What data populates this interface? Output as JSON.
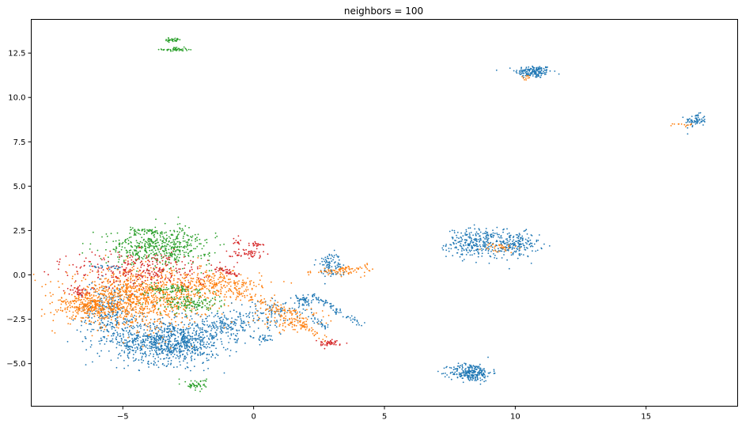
{
  "chart_data": {
    "type": "scatter",
    "title": "neighbors = 100",
    "xlabel": "",
    "ylabel": "",
    "xlim": [
      -8.5,
      18.5
    ],
    "ylim": [
      -7.4,
      14.4
    ],
    "x_ticks": [
      -5,
      0,
      5,
      10,
      15
    ],
    "x_tick_labels": [
      "−5",
      "0",
      "5",
      "10",
      "15"
    ],
    "y_ticks": [
      -5.0,
      -2.5,
      0.0,
      2.5,
      5.0,
      7.5,
      10.0,
      12.5
    ],
    "y_tick_labels": [
      "−5.0",
      "−2.5",
      "0.0",
      "2.5",
      "5.0",
      "7.5",
      "10.0",
      "12.5"
    ],
    "grid": false,
    "legend": "none",
    "colors": {
      "blue": "#1f77b4",
      "orange": "#ff7f0e",
      "green": "#2ca02c",
      "red": "#d62728"
    },
    "clusters": [
      {
        "color": "blue",
        "cx": 10.7,
        "cy": 11.45,
        "sx": 0.35,
        "sy": 0.18,
        "n": 160
      },
      {
        "color": "orange",
        "cx": 10.4,
        "cy": 11.1,
        "sx": 0.1,
        "sy": 0.08,
        "n": 10
      },
      {
        "color": "blue",
        "cx": 16.9,
        "cy": 8.7,
        "sx": 0.2,
        "sy": 0.18,
        "n": 70
      },
      {
        "color": "orange",
        "cx": 16.4,
        "cy": 8.45,
        "sx": 0.18,
        "sy": 0.05,
        "n": 12
      },
      {
        "color": "green",
        "cx": -3.0,
        "cy": 12.7,
        "sx": 0.25,
        "sy": 0.06,
        "n": 50
      },
      {
        "color": "green",
        "cx": -3.1,
        "cy": 13.25,
        "sx": 0.18,
        "sy": 0.06,
        "n": 30
      },
      {
        "color": "blue",
        "cx": 8.5,
        "cy": 1.8,
        "sx": 0.55,
        "sy": 0.4,
        "n": 280
      },
      {
        "color": "blue",
        "cx": 10.0,
        "cy": 1.7,
        "sx": 0.45,
        "sy": 0.35,
        "n": 180
      },
      {
        "color": "orange",
        "cx": 9.4,
        "cy": 1.5,
        "sx": 0.35,
        "sy": 0.15,
        "n": 35
      },
      {
        "color": "blue",
        "cx": 8.3,
        "cy": -5.5,
        "sx": 0.4,
        "sy": 0.25,
        "n": 260
      },
      {
        "color": "blue",
        "cx": -3.2,
        "cy": -3.8,
        "sx": 1.0,
        "sy": 0.6,
        "n": 900
      },
      {
        "color": "blue",
        "cx": -5.5,
        "cy": -2.2,
        "sx": 0.6,
        "sy": 0.9,
        "n": 300
      },
      {
        "color": "blue",
        "cx": -1.0,
        "cy": -2.8,
        "sx": 0.8,
        "sy": 0.4,
        "n": 200
      },
      {
        "color": "orange",
        "cx": -4.5,
        "cy": -1.3,
        "sx": 1.3,
        "sy": 0.8,
        "n": 1100
      },
      {
        "color": "orange",
        "cx": -6.3,
        "cy": -1.8,
        "sx": 0.5,
        "sy": 0.35,
        "n": 250
      },
      {
        "color": "orange",
        "cx": -1.5,
        "cy": -0.6,
        "sx": 0.9,
        "sy": 0.4,
        "n": 300
      },
      {
        "color": "green",
        "cx": -3.6,
        "cy": 1.6,
        "sx": 1.0,
        "sy": 0.5,
        "n": 500
      },
      {
        "color": "green",
        "cx": -2.5,
        "cy": -1.6,
        "sx": 0.6,
        "sy": 0.25,
        "n": 140
      },
      {
        "color": "green",
        "cx": -3.0,
        "cy": -0.8,
        "sx": 0.5,
        "sy": 0.15,
        "n": 80
      },
      {
        "color": "green",
        "cx": -2.2,
        "cy": -6.2,
        "sx": 0.2,
        "sy": 0.15,
        "n": 50
      },
      {
        "color": "red",
        "cx": -4.3,
        "cy": 0.3,
        "sx": 1.3,
        "sy": 0.55,
        "n": 300
      },
      {
        "color": "red",
        "cx": -6.7,
        "cy": -0.9,
        "sx": 0.2,
        "sy": 0.12,
        "n": 40
      },
      {
        "color": "red",
        "cx": -0.3,
        "cy": 1.2,
        "sx": 0.35,
        "sy": 0.12,
        "n": 50
      },
      {
        "color": "red",
        "cx": 0.1,
        "cy": 1.75,
        "sx": 0.15,
        "sy": 0.08,
        "n": 20
      },
      {
        "color": "red",
        "cx": -0.6,
        "cy": 1.9,
        "sx": 0.1,
        "sy": 0.1,
        "n": 12
      },
      {
        "color": "red",
        "cx": 2.9,
        "cy": -3.85,
        "sx": 0.25,
        "sy": 0.1,
        "n": 45
      },
      {
        "color": "blue",
        "cx": 2.9,
        "cy": 0.6,
        "sx": 0.25,
        "sy": 0.35,
        "n": 90
      },
      {
        "color": "blue",
        "cx": 1.9,
        "cy": -1.5,
        "sx": 0.2,
        "sy": 0.25,
        "n": 50
      },
      {
        "color": "blue",
        "cx": 0.4,
        "cy": -3.6,
        "sx": 0.15,
        "sy": 0.12,
        "n": 25
      },
      {
        "color": "blue",
        "cx": 0.9,
        "cy": -2.0,
        "sx": 0.7,
        "sy": 0.35,
        "n": 80
      },
      {
        "color": "orange",
        "cx": 3.5,
        "cy": 0.2,
        "sx": 0.5,
        "sy": 0.15,
        "n": 40
      },
      {
        "color": "orange",
        "cx": 1.5,
        "cy": -2.6,
        "sx": 0.8,
        "sy": 0.35,
        "n": 90
      }
    ],
    "streaks": [
      {
        "color": "blue",
        "x0": 2.2,
        "y0": -1.1,
        "x1": 4.1,
        "y1": -2.8,
        "n": 70,
        "jitter": 0.08
      },
      {
        "color": "orange",
        "x0": 2.0,
        "y0": 0.1,
        "x1": 4.4,
        "y1": 0.5,
        "n": 45,
        "jitter": 0.07
      },
      {
        "color": "orange",
        "x0": 0.2,
        "y0": -1.6,
        "x1": 2.8,
        "y1": -3.6,
        "n": 60,
        "jitter": 0.1
      },
      {
        "color": "orange",
        "x0": -1.0,
        "y0": -0.8,
        "x1": 2.0,
        "y1": -2.4,
        "n": 80,
        "jitter": 0.12
      },
      {
        "color": "blue",
        "x0": 2.2,
        "y0": -2.4,
        "x1": 2.8,
        "y1": -3.0,
        "n": 25,
        "jitter": 0.08
      },
      {
        "color": "blue",
        "x0": -6.3,
        "y0": 0.5,
        "x1": -5.1,
        "y1": 0.4,
        "n": 20,
        "jitter": 0.05
      },
      {
        "color": "green",
        "x0": -4.8,
        "y0": 2.55,
        "x1": -3.6,
        "y1": 2.4,
        "n": 40,
        "jitter": 0.07
      },
      {
        "color": "red",
        "x0": -1.5,
        "y0": 0.4,
        "x1": -0.6,
        "y1": 0.0,
        "n": 40,
        "jitter": 0.08
      }
    ]
  }
}
